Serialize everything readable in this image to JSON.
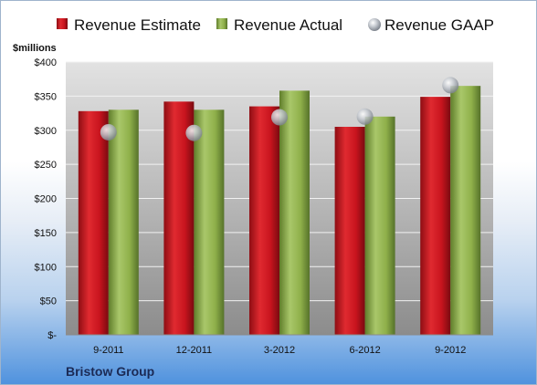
{
  "chart_data": {
    "type": "bar",
    "unit_label": "$millions",
    "categories": [
      "9-2011",
      "12-2011",
      "3-2012",
      "6-2012",
      "9-2012"
    ],
    "series": [
      {
        "name": "Revenue Estimate",
        "kind": "bar",
        "color": "#c8141e",
        "values": [
          328,
          342,
          335,
          305,
          349
        ]
      },
      {
        "name": "Revenue Actual",
        "kind": "bar",
        "color": "#8fb04a",
        "values": [
          330,
          330,
          358,
          320,
          365
        ]
      },
      {
        "name": "Revenue GAAP",
        "kind": "marker",
        "color": "#b9bec6",
        "values": [
          297,
          296,
          319,
          320,
          366
        ]
      }
    ],
    "y_ticks": [
      "$-",
      "$50",
      "$100",
      "$150",
      "$200",
      "$250",
      "$300",
      "$350",
      "$400"
    ],
    "ylim": [
      0,
      400
    ],
    "grid": true,
    "legend_position": "top",
    "footer": "Bristow Group"
  }
}
